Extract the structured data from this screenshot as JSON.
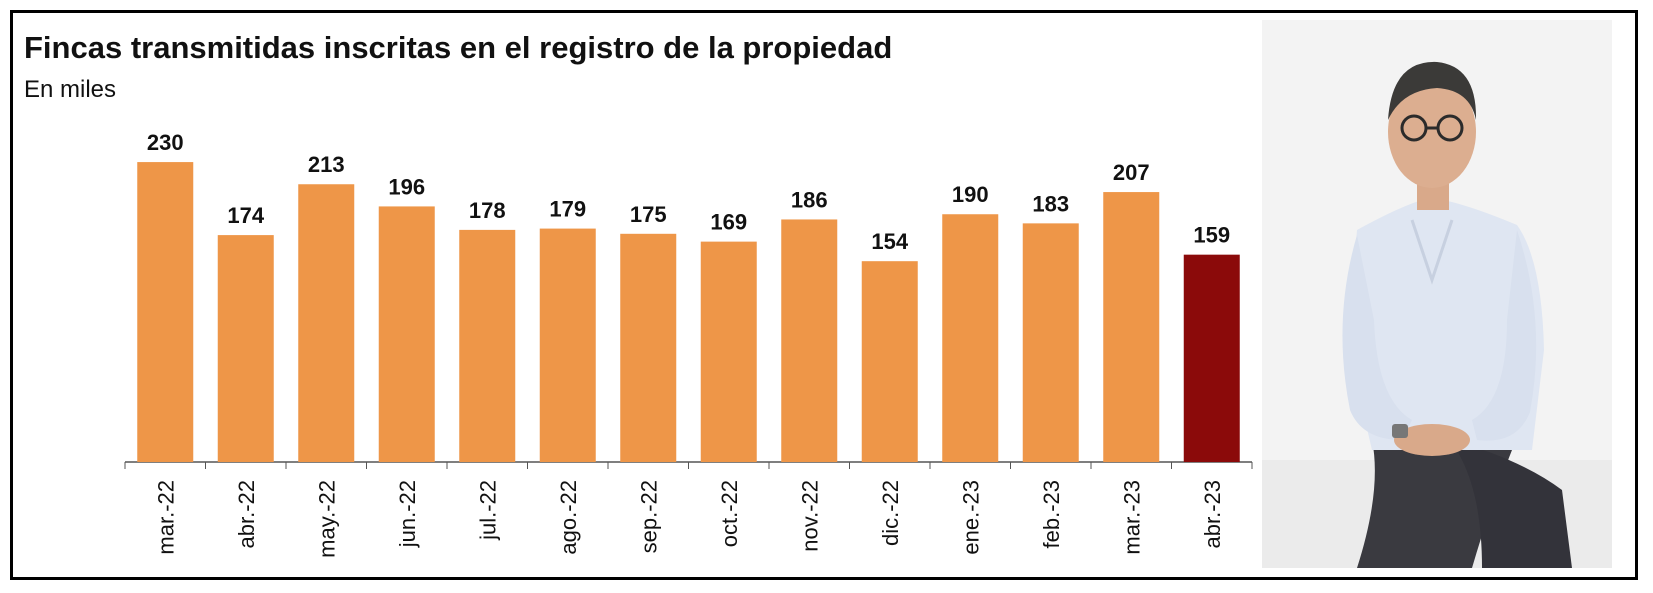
{
  "chart_data": {
    "type": "bar",
    "title": "Fincas transmitidas inscritas en el registro de la propiedad",
    "subtitle": "En miles",
    "categories": [
      "mar.-22",
      "abr.-22",
      "may.-22",
      "jun.-22",
      "jul.-22",
      "ago.-22",
      "sep.-22",
      "oct.-22",
      "nov.-22",
      "dic.-22",
      "ene.-23",
      "feb.-23",
      "mar.-23",
      "abr.-23"
    ],
    "values": [
      230,
      174,
      213,
      196,
      178,
      179,
      175,
      169,
      186,
      154,
      190,
      183,
      207,
      159
    ],
    "highlight_index": 13,
    "colors": {
      "bar": "#EE9648",
      "highlight": "#8B0A0A",
      "axis": "#555555",
      "text": "#111111"
    },
    "ylim": [
      0,
      240
    ],
    "grid": false,
    "legend": "none"
  },
  "photo": {
    "icon": "portrait-photo",
    "background": "#f4f4f4"
  }
}
